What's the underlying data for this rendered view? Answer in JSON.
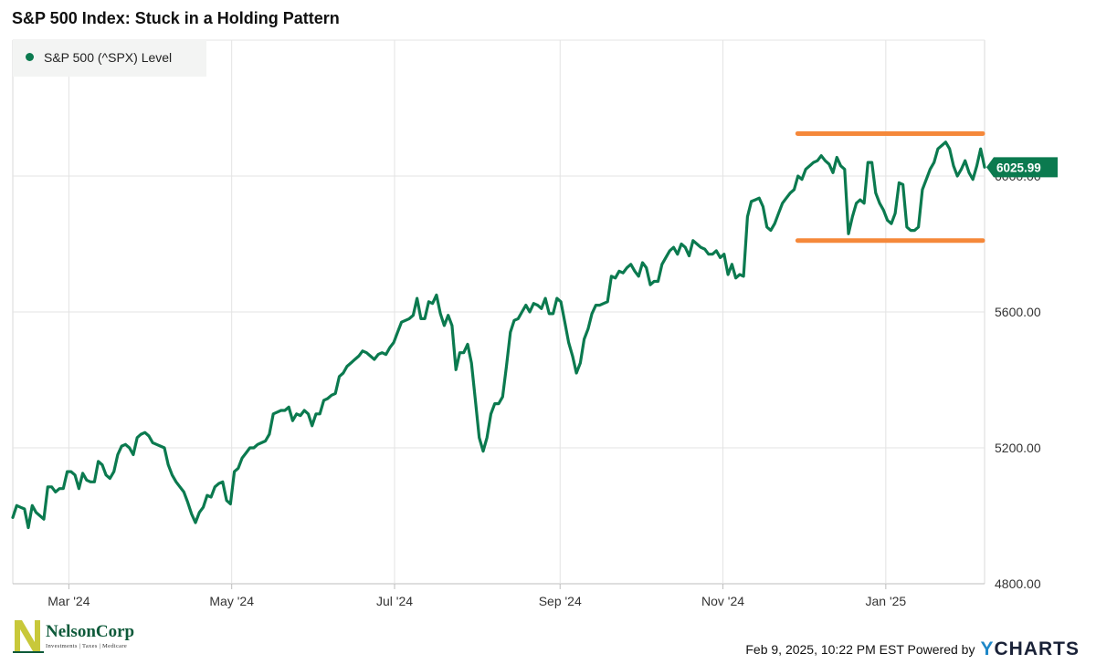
{
  "chart_data": {
    "type": "line",
    "title": "S&P 500 Index: Stuck in a Holding Pattern",
    "series": [
      {
        "name": "S&P 500 (^SPX) Level",
        "color": "#0b7a4f",
        "last_value_label": "6025.99",
        "values": [
          4995,
          5030,
          5025,
          5020,
          4965,
          5030,
          5010,
          5000,
          4990,
          5085,
          5085,
          5070,
          5080,
          5080,
          5130,
          5130,
          5120,
          5080,
          5125,
          5105,
          5100,
          5100,
          5160,
          5150,
          5120,
          5110,
          5130,
          5180,
          5205,
          5210,
          5200,
          5180,
          5230,
          5240,
          5245,
          5235,
          5215,
          5210,
          5205,
          5200,
          5150,
          5120,
          5100,
          5085,
          5070,
          5040,
          5005,
          4980,
          5010,
          5025,
          5060,
          5055,
          5085,
          5095,
          5100,
          5045,
          5035,
          5130,
          5140,
          5170,
          5185,
          5200,
          5200,
          5210,
          5215,
          5220,
          5240,
          5300,
          5305,
          5310,
          5310,
          5320,
          5280,
          5300,
          5295,
          5310,
          5300,
          5265,
          5300,
          5300,
          5340,
          5345,
          5355,
          5360,
          5410,
          5420,
          5440,
          5450,
          5460,
          5470,
          5485,
          5480,
          5470,
          5460,
          5475,
          5480,
          5475,
          5495,
          5510,
          5540,
          5570,
          5575,
          5580,
          5590,
          5640,
          5580,
          5580,
          5630,
          5625,
          5650,
          5595,
          5560,
          5590,
          5560,
          5430,
          5480,
          5480,
          5505,
          5450,
          5340,
          5230,
          5190,
          5230,
          5300,
          5330,
          5330,
          5350,
          5440,
          5540,
          5575,
          5580,
          5600,
          5620,
          5600,
          5625,
          5620,
          5610,
          5640,
          5595,
          5595,
          5640,
          5630,
          5570,
          5510,
          5470,
          5420,
          5450,
          5520,
          5550,
          5595,
          5620,
          5620,
          5625,
          5630,
          5705,
          5700,
          5720,
          5715,
          5730,
          5740,
          5720,
          5705,
          5745,
          5730,
          5680,
          5690,
          5690,
          5740,
          5760,
          5780,
          5790,
          5770,
          5800,
          5790,
          5765,
          5810,
          5800,
          5790,
          5785,
          5770,
          5770,
          5780,
          5760,
          5770,
          5710,
          5740,
          5700,
          5710,
          5705,
          5880,
          5925,
          5930,
          5935,
          5910,
          5850,
          5840,
          5860,
          5890,
          5920,
          5935,
          5950,
          5960,
          6000,
          5990,
          6020,
          6030,
          6040,
          6045,
          6060,
          6045,
          6035,
          6010,
          6055,
          6030,
          6020,
          5830,
          5880,
          5920,
          5930,
          5920,
          6040,
          6040,
          5950,
          5920,
          5900,
          5870,
          5860,
          5890,
          5980,
          5975,
          5850,
          5840,
          5840,
          5850,
          5960,
          5990,
          6020,
          6040,
          6080,
          6090,
          6100,
          6080,
          6030,
          6000,
          6020,
          6045,
          6010,
          5990,
          6030,
          6080,
          6025.99
        ]
      }
    ],
    "x_start": "2024-02-09",
    "x_end": "2025-02-07",
    "x_ticks": [
      {
        "label": "Mar '24",
        "date": "2024-03-01"
      },
      {
        "label": "May '24",
        "date": "2024-05-01"
      },
      {
        "label": "Jul '24",
        "date": "2024-07-01"
      },
      {
        "label": "Sep '24",
        "date": "2024-09-01"
      },
      {
        "label": "Nov '24",
        "date": "2024-11-01"
      },
      {
        "label": "Jan '25",
        "date": "2025-01-01"
      }
    ],
    "y_ticks": [
      {
        "label": "4800.00",
        "value": 4800
      },
      {
        "label": "5200.00",
        "value": 5200
      },
      {
        "label": "5600.00",
        "value": 5600
      },
      {
        "label": "6000.00",
        "value": 6000
      }
    ],
    "ylim": [
      4800,
      6400
    ],
    "grid": true,
    "legend": "top-left",
    "annotations": [
      {
        "type": "hline",
        "value": 6125,
        "from": "2024-11-29",
        "to": "2025-02-07",
        "color": "#f5883a"
      },
      {
        "type": "hline",
        "value": 5810,
        "from": "2024-11-29",
        "to": "2025-02-07",
        "color": "#f5883a"
      }
    ]
  },
  "footer": {
    "timestamp": "Feb 9, 2025, 10:22 PM EST Powered by",
    "powered_brand_y": "Y",
    "powered_brand_rest": "CHARTS"
  },
  "logo": {
    "name": "NelsonCorp",
    "tagline": "Investments | Taxes | Medicare"
  }
}
